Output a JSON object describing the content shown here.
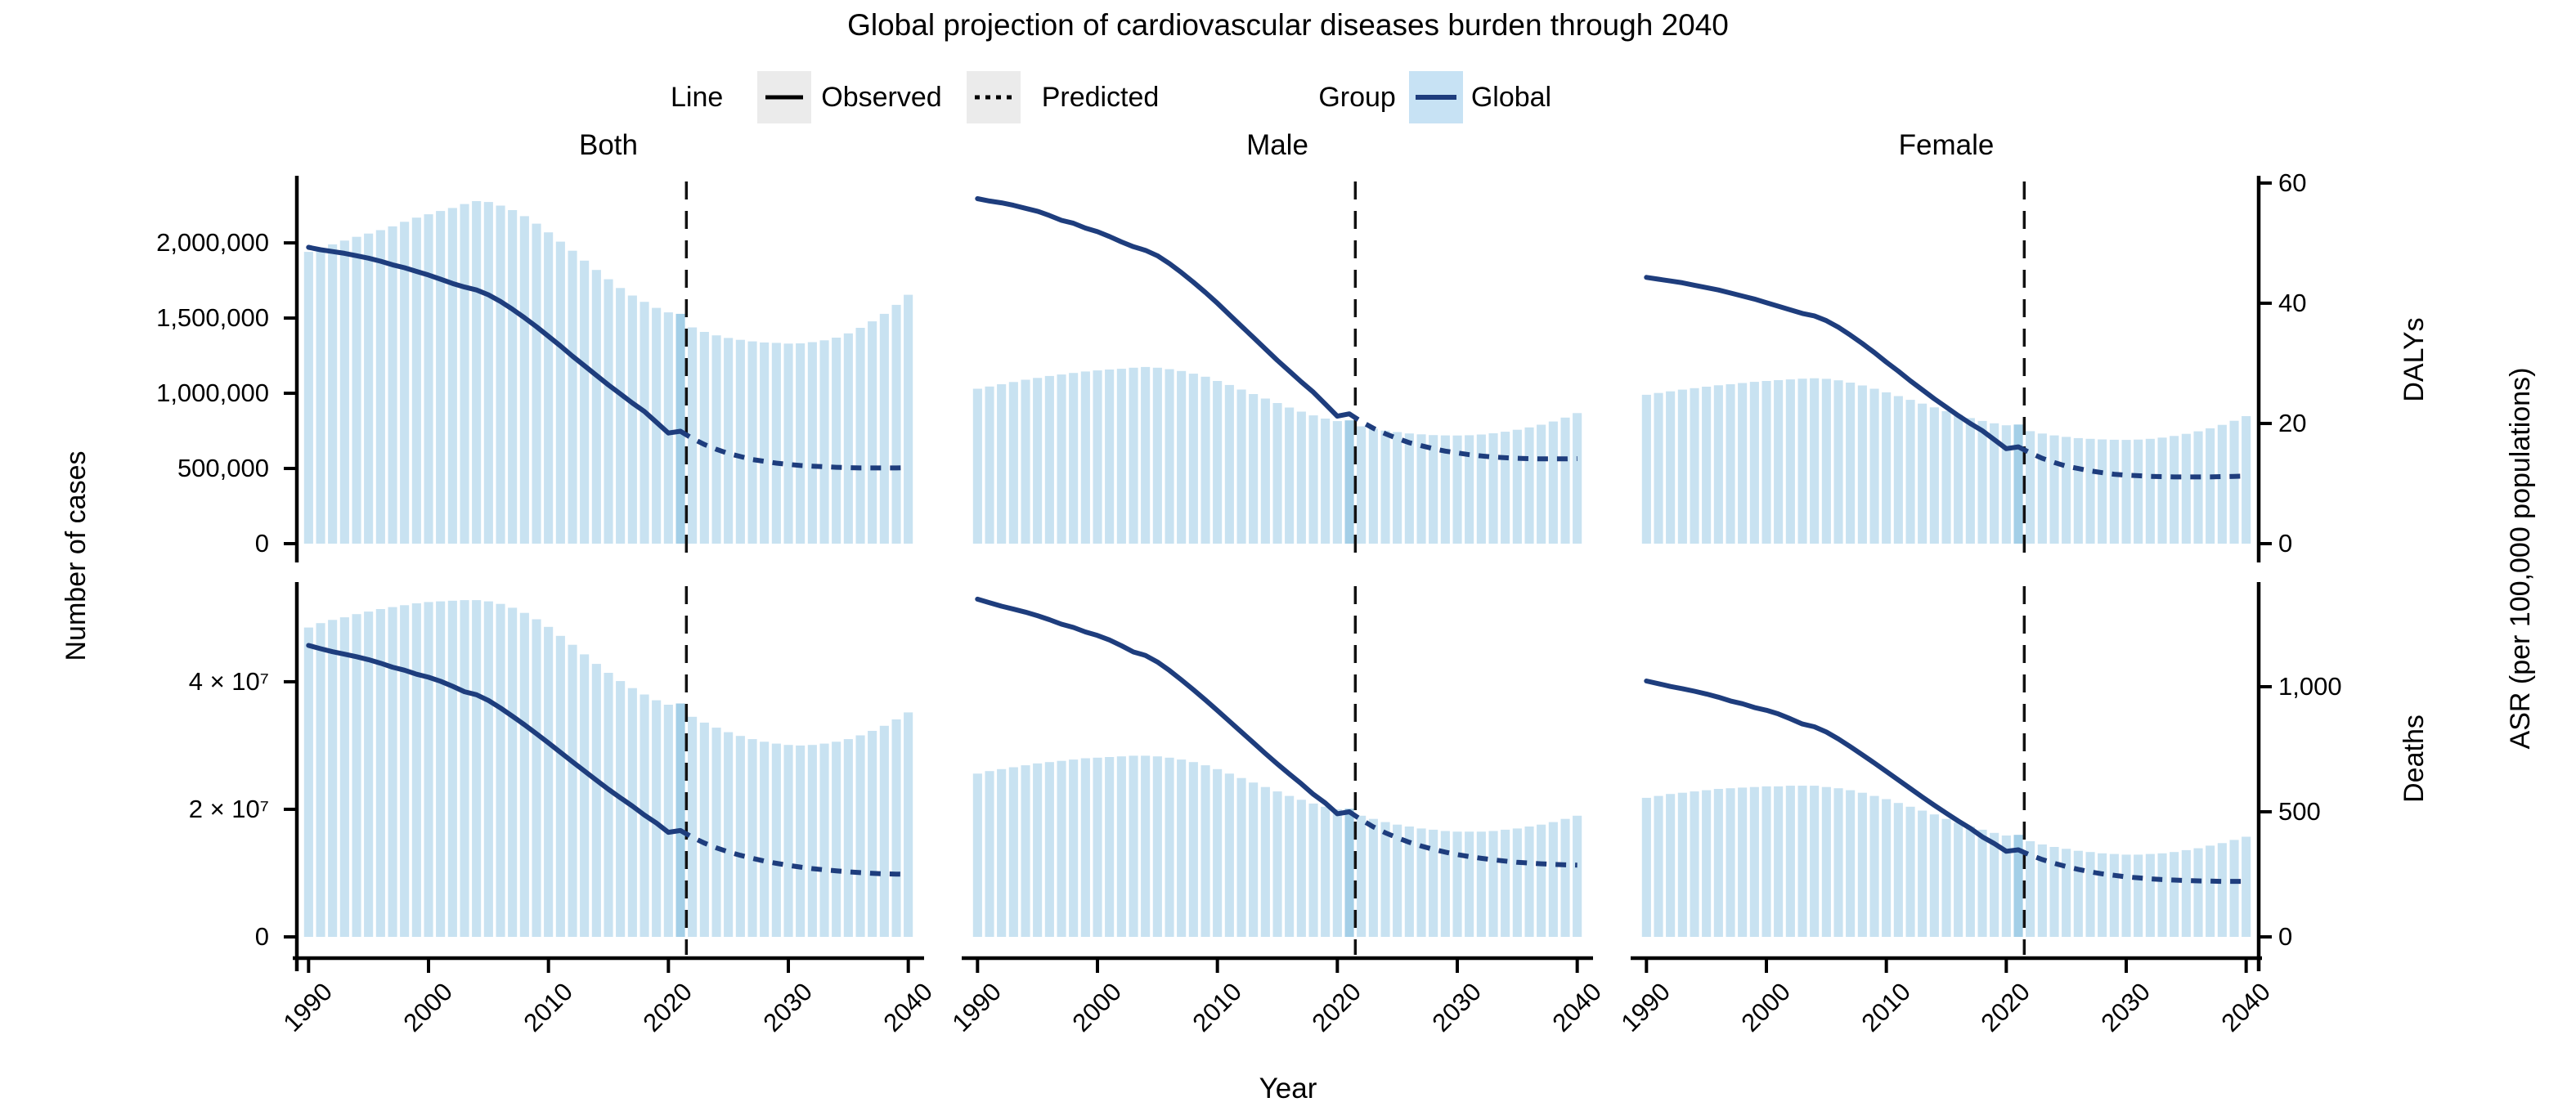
{
  "chart_data": {
    "type": "bar",
    "subtype": "2x3 small multiples: yearly count bars with ASR line overlay (solid observed, dotted predicted)",
    "title": "Global projection of cardiovascular diseases burden through 2040",
    "columns": [
      "Both",
      "Male",
      "Female"
    ],
    "x_title": "Year",
    "y_left_title": "Number of cases",
    "right_outer_title": "ASR (per 100,000 populations)",
    "x_ticks": [
      "1990",
      "2000",
      "2010",
      "2020",
      "2030",
      "2040"
    ],
    "years_start": 1990,
    "years_end": 2040,
    "observed_years": "1990-2021",
    "predicted_years": "2021-2040",
    "forecast_divider_year": 2021.5,
    "legend": {
      "line_label": "Line",
      "observed": "Observed",
      "predicted": "Predicted",
      "group_label": "Group",
      "global": "Global"
    },
    "colors": {
      "bar": "#c8e2f1",
      "bar_highlight": "#a4cfe7",
      "line": "#1e3d7d",
      "divider": "#111111",
      "axis": "#000000",
      "legend_key_bg": "#ebebeb",
      "legend_group_key_bg": "#c7e2f4"
    },
    "rows": [
      {
        "name": "DALYs",
        "right_title": "DALYs",
        "count_max": 2430000,
        "asr_max": 60.8,
        "count_ticks": [
          {
            "v": 0,
            "label": "0"
          },
          {
            "v": 500000,
            "label": "500,000"
          },
          {
            "v": 1000000,
            "label": "1,000,000"
          },
          {
            "v": 1500000,
            "label": "1,500,000"
          },
          {
            "v": 2000000,
            "label": "2,000,000"
          }
        ],
        "asr_ticks": [
          {
            "v": 0,
            "label": "0"
          },
          {
            "v": 20,
            "label": "20"
          },
          {
            "v": 40,
            "label": "40"
          },
          {
            "v": 60,
            "label": "60"
          }
        ]
      },
      {
        "name": "Deaths",
        "right_title": "Deaths",
        "count_max": 55500000,
        "asr_max": 1415,
        "count_ticks": [
          {
            "v": 0,
            "label": "0"
          },
          {
            "v": 20000000,
            "label": "2 × 10⁷"
          },
          {
            "v": 40000000,
            "label": "4 × 10⁷"
          }
        ],
        "asr_ticks": [
          {
            "v": 0,
            "label": "0"
          },
          {
            "v": 500,
            "label": "500"
          },
          {
            "v": 1000,
            "label": "1,000"
          }
        ]
      }
    ],
    "panels": [
      {
        "row": "DALYs",
        "col": "Both",
        "bars": [
          1940000,
          1965000,
          1990000,
          2015000,
          2040000,
          2062000,
          2085000,
          2110000,
          2140000,
          2168000,
          2190000,
          2212000,
          2232000,
          2258000,
          2278000,
          2272000,
          2248000,
          2218000,
          2178000,
          2128000,
          2070000,
          2008000,
          1948000,
          1882000,
          1820000,
          1758000,
          1700000,
          1650000,
          1608000,
          1568000,
          1538000,
          1528000,
          1438000,
          1408000,
          1385000,
          1368000,
          1355000,
          1345000,
          1338000,
          1335000,
          1330000,
          1332000,
          1340000,
          1352000,
          1370000,
          1398000,
          1435000,
          1478000,
          1528000,
          1588000,
          1655000
        ],
        "line_observed": [
          49.3,
          48.9,
          48.6,
          48.3,
          47.9,
          47.5,
          47.0,
          46.4,
          45.9,
          45.3,
          44.7,
          44.0,
          43.3,
          42.7,
          42.2,
          41.4,
          40.3,
          39.0,
          37.6,
          36.1,
          34.5,
          32.9,
          31.2,
          29.6,
          28.0,
          26.4,
          24.9,
          23.4,
          22.0,
          20.2,
          18.4,
          18.7
        ],
        "line_predicted": [
          18.7,
          17.5,
          16.5,
          15.7,
          15.0,
          14.5,
          14.0,
          13.7,
          13.4,
          13.2,
          13.0,
          12.9,
          12.8,
          12.7,
          12.65,
          12.6,
          12.6,
          12.6,
          12.6,
          12.65
        ]
      },
      {
        "row": "DALYs",
        "col": "Male",
        "bars": [
          1030000,
          1045000,
          1060000,
          1075000,
          1090000,
          1102000,
          1115000,
          1125000,
          1135000,
          1145000,
          1152000,
          1158000,
          1163000,
          1170000,
          1175000,
          1170000,
          1160000,
          1148000,
          1130000,
          1110000,
          1082000,
          1055000,
          1025000,
          995000,
          965000,
          935000,
          905000,
          878000,
          853000,
          832000,
          815000,
          820000,
          780000,
          765000,
          752000,
          742000,
          733000,
          727000,
          722000,
          720000,
          719000,
          721000,
          726000,
          734000,
          744000,
          757000,
          773000,
          791000,
          812000,
          838000,
          868000
        ],
        "line_observed": [
          57.4,
          57.0,
          56.7,
          56.3,
          55.8,
          55.3,
          54.6,
          53.8,
          53.3,
          52.5,
          51.9,
          51.1,
          50.2,
          49.4,
          48.8,
          47.9,
          46.6,
          45.1,
          43.5,
          41.8,
          40.0,
          38.1,
          36.2,
          34.3,
          32.4,
          30.5,
          28.7,
          26.9,
          25.2,
          23.2,
          21.2,
          21.6
        ],
        "line_predicted": [
          21.6,
          20.3,
          19.2,
          18.3,
          17.5,
          16.8,
          16.3,
          15.8,
          15.4,
          15.1,
          14.8,
          14.6,
          14.4,
          14.3,
          14.2,
          14.15,
          14.1,
          14.1,
          14.1,
          14.15
        ]
      },
      {
        "row": "DALYs",
        "col": "Female",
        "bars": [
          990000,
          1002000,
          1013000,
          1024000,
          1034000,
          1044000,
          1053000,
          1060000,
          1068000,
          1076000,
          1082000,
          1087000,
          1092000,
          1097000,
          1100000,
          1096000,
          1086000,
          1071000,
          1052000,
          1030000,
          1006000,
          981000,
          956000,
          931000,
          906000,
          881000,
          857000,
          835000,
          816000,
          800000,
          787000,
          792000,
          748000,
          732000,
          720000,
          710000,
          702000,
          697000,
          693000,
          691000,
          690000,
          692000,
          697000,
          705000,
          716000,
          730000,
          747000,
          767000,
          790000,
          817000,
          848000
        ],
        "line_observed": [
          44.3,
          44.0,
          43.7,
          43.4,
          43.0,
          42.6,
          42.2,
          41.7,
          41.2,
          40.7,
          40.1,
          39.5,
          38.9,
          38.3,
          37.9,
          37.1,
          36.0,
          34.7,
          33.3,
          31.8,
          30.2,
          28.7,
          27.1,
          25.6,
          24.1,
          22.7,
          21.3,
          20.0,
          18.8,
          17.3,
          15.8,
          16.1
        ],
        "line_predicted": [
          16.1,
          15.1,
          14.2,
          13.5,
          12.9,
          12.5,
          12.1,
          11.8,
          11.55,
          11.4,
          11.3,
          11.2,
          11.15,
          11.1,
          11.1,
          11.1,
          11.1,
          11.15,
          11.2,
          11.25
        ]
      },
      {
        "row": "Deaths",
        "col": "Both",
        "bars": [
          48500000,
          49200000,
          49700000,
          50100000,
          50600000,
          51000000,
          51400000,
          51700000,
          52000000,
          52300000,
          52500000,
          52600000,
          52700000,
          52800000,
          52800000,
          52600000,
          52200000,
          51600000,
          50800000,
          49800000,
          48600000,
          47200000,
          45800000,
          44300000,
          42800000,
          41400000,
          40100000,
          39000000,
          38000000,
          37100000,
          36400000,
          36600000,
          34500000,
          33600000,
          32800000,
          32100000,
          31500000,
          31000000,
          30600000,
          30300000,
          30100000,
          30000000,
          30100000,
          30300000,
          30600000,
          31000000,
          31600000,
          32300000,
          33100000,
          34100000,
          35200000
        ],
        "line_observed": [
          1165,
          1152,
          1140,
          1130,
          1120,
          1108,
          1094,
          1078,
          1066,
          1050,
          1038,
          1022,
          1002,
          980,
          968,
          945,
          915,
          882,
          848,
          812,
          775,
          738,
          700,
          663,
          626,
          590,
          556,
          523,
          487,
          455,
          418,
          425
        ],
        "line_predicted": [
          425,
          398,
          375,
          356,
          340,
          326,
          314,
          303,
          294,
          286,
          279,
          273,
          268,
          264,
          260,
          257,
          254,
          252,
          251,
          250
        ]
      },
      {
        "row": "Deaths",
        "col": "Male",
        "bars": [
          25600000,
          26000000,
          26300000,
          26600000,
          26900000,
          27200000,
          27400000,
          27600000,
          27800000,
          28000000,
          28100000,
          28200000,
          28300000,
          28400000,
          28400000,
          28300000,
          28100000,
          27800000,
          27400000,
          26900000,
          26300000,
          25600000,
          24900000,
          24200000,
          23500000,
          22800000,
          22100000,
          21500000,
          20900000,
          20400000,
          20000000,
          20100000,
          19000000,
          18500000,
          18000000,
          17600000,
          17300000,
          17000000,
          16800000,
          16600000,
          16500000,
          16500000,
          16500000,
          16600000,
          16800000,
          17000000,
          17300000,
          17600000,
          18000000,
          18500000,
          19000000
        ],
        "line_observed": [
          1350,
          1336,
          1322,
          1310,
          1298,
          1284,
          1268,
          1250,
          1237,
          1219,
          1205,
          1187,
          1164,
          1139,
          1125,
          1099,
          1065,
          1027,
          988,
          947,
          905,
          862,
          819,
          776,
          733,
          691,
          651,
          612,
          570,
          535,
          492,
          500
        ],
        "line_predicted": [
          500,
          468,
          440,
          416,
          396,
          378,
          363,
          350,
          339,
          329,
          321,
          314,
          308,
          303,
          298,
          295,
          292,
          290,
          288,
          287
        ]
      },
      {
        "row": "Deaths",
        "col": "Female",
        "bars": [
          21800000,
          22100000,
          22400000,
          22600000,
          22800000,
          23000000,
          23200000,
          23300000,
          23400000,
          23500000,
          23600000,
          23600000,
          23700000,
          23700000,
          23700000,
          23500000,
          23300000,
          23000000,
          22600000,
          22100000,
          21600000,
          21000000,
          20400000,
          19800000,
          19200000,
          18500000,
          17900000,
          17300000,
          16800000,
          16300000,
          15900000,
          16000000,
          15000000,
          14500000,
          14100000,
          13800000,
          13500000,
          13300000,
          13100000,
          13000000,
          12900000,
          12900000,
          13000000,
          13100000,
          13300000,
          13600000,
          13900000,
          14300000,
          14700000,
          15200000,
          15700000
        ],
        "line_observed": [
          1023,
          1012,
          1001,
          992,
          982,
          971,
          958,
          943,
          932,
          917,
          906,
          891,
          872,
          851,
          840,
          819,
          791,
          760,
          728,
          695,
          661,
          627,
          593,
          559,
          526,
          494,
          463,
          434,
          400,
          373,
          342,
          348
        ],
        "line_predicted": [
          348,
          327,
          309,
          294,
          281,
          270,
          260,
          252,
          246,
          240,
          236,
          232,
          229,
          227,
          225,
          224,
          223,
          222,
          222,
          222
        ]
      }
    ]
  }
}
